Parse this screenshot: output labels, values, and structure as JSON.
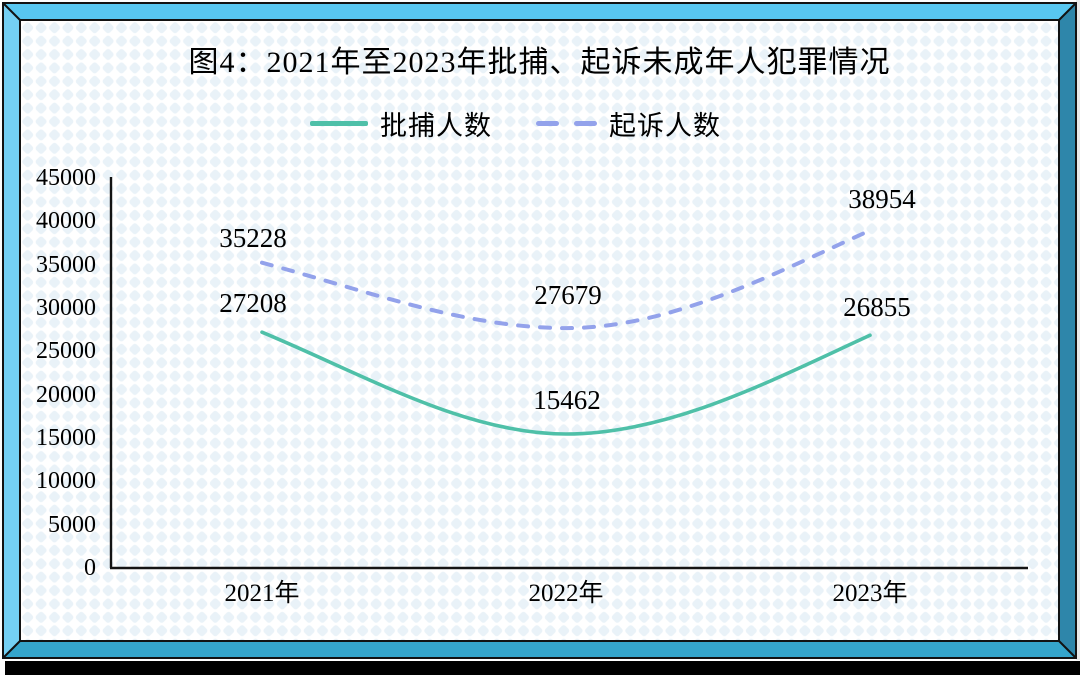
{
  "figure": {
    "kind": "statistics line chart",
    "frame_colors": {
      "top": "#58C7F1",
      "left": "#74D0F4",
      "right": "#2E86AA",
      "bottom": "#35A5CB",
      "outline": "#121212",
      "shadow": "#000000"
    },
    "background_pattern_color": "#E9F2F8"
  },
  "chart_data": {
    "type": "line",
    "title": "图4：2021年至2023年批捕、起诉未成年人犯罪情况",
    "categories": [
      "2021年",
      "2022年",
      "2023年"
    ],
    "series": [
      {
        "name": "批捕人数",
        "values": [
          27208,
          15462,
          26855
        ],
        "style": "solid",
        "color": "#4FC0A8"
      },
      {
        "name": "起诉人数",
        "values": [
          35228,
          27679,
          38954
        ],
        "style": "dashed",
        "color": "#93A2EB"
      }
    ],
    "ylim": [
      0,
      45000
    ],
    "ytick_step": 5000,
    "yticks": [
      "45000",
      "40000",
      "35000",
      "30000",
      "25000",
      "20000",
      "15000",
      "10000",
      "5000",
      "0"
    ],
    "xlabel": "",
    "ylabel": "",
    "grid": false,
    "legend_position": "top",
    "data_labels": true,
    "line_smoothing": "spline"
  }
}
